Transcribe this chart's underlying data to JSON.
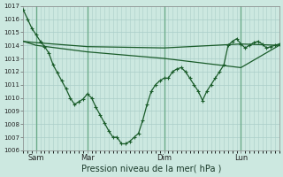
{
  "xlabel": "Pression niveau de la mer( hPa )",
  "ylim": [
    1006,
    1017
  ],
  "yticks": [
    1006,
    1007,
    1008,
    1009,
    1010,
    1011,
    1012,
    1013,
    1014,
    1015,
    1016,
    1017
  ],
  "xtick_labels": [
    "Sam",
    "Mar",
    "Dim",
    "Lun"
  ],
  "xtick_positions": [
    12,
    60,
    132,
    204
  ],
  "vline_positions": [
    12,
    60,
    132,
    204
  ],
  "xlim": [
    0,
    240
  ],
  "bg_color": "#cce8e0",
  "line_color": "#1a5c2a",
  "grid_color": "#aacec8",
  "vline_color": "#6aaa88",
  "line1_x": [
    0,
    4,
    8,
    12,
    16,
    20,
    24,
    28,
    32,
    36,
    40,
    44,
    48,
    52,
    56,
    60,
    64,
    68,
    72,
    76,
    80,
    84,
    88,
    92,
    96,
    100,
    104,
    108,
    112,
    116,
    120,
    124,
    128,
    132,
    136,
    140,
    144,
    148,
    152,
    156,
    160,
    164,
    168,
    172,
    176,
    180,
    184,
    188,
    192,
    196,
    200,
    204,
    208,
    212,
    216,
    220,
    224,
    228,
    232,
    236,
    240
  ],
  "line1_y": [
    1016.7,
    1016.0,
    1015.3,
    1014.8,
    1014.3,
    1013.9,
    1013.4,
    1012.5,
    1011.9,
    1011.3,
    1010.7,
    1010.0,
    1009.5,
    1009.7,
    1009.9,
    1010.3,
    1010.0,
    1009.3,
    1008.7,
    1008.1,
    1007.5,
    1007.0,
    1007.0,
    1006.5,
    1006.5,
    1006.7,
    1007.0,
    1007.3,
    1008.3,
    1009.5,
    1010.5,
    1011.0,
    1011.3,
    1011.5,
    1011.5,
    1012.0,
    1012.2,
    1012.3,
    1012.0,
    1011.5,
    1011.0,
    1010.5,
    1009.8,
    1010.5,
    1011.0,
    1011.5,
    1012.0,
    1012.5,
    1014.0,
    1014.3,
    1014.5,
    1014.1,
    1013.8,
    1014.0,
    1014.2,
    1014.3,
    1014.1,
    1013.8,
    1013.9,
    1014.0,
    1014.1
  ],
  "line2_x": [
    0,
    12,
    60,
    132,
    204,
    240
  ],
  "line2_y": [
    1014.3,
    1014.2,
    1013.9,
    1013.8,
    1014.1,
    1014.0
  ],
  "line3_x": [
    0,
    12,
    60,
    132,
    204,
    240
  ],
  "line3_y": [
    1014.3,
    1014.0,
    1013.5,
    1013.0,
    1012.3,
    1014.0
  ]
}
